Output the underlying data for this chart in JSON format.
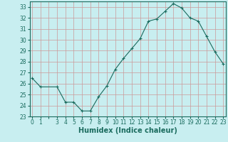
{
  "xlabel": "Humidex (Indice chaleur)",
  "x": [
    0,
    1,
    3,
    4,
    5,
    6,
    7,
    8,
    9,
    10,
    11,
    12,
    13,
    14,
    15,
    16,
    17,
    18,
    19,
    20,
    21,
    22,
    23
  ],
  "y": [
    26.5,
    25.7,
    25.7,
    24.3,
    24.3,
    23.5,
    23.5,
    24.8,
    25.8,
    27.3,
    28.3,
    29.2,
    30.1,
    31.7,
    31.9,
    32.6,
    33.3,
    32.9,
    32.0,
    31.7,
    30.3,
    28.9,
    27.8
  ],
  "line_color": "#1a6b5e",
  "marker": "+",
  "bg_color": "#c8eef0",
  "grid_color": "#cc9999",
  "tick_labels": [
    "0",
    "1",
    "",
    "3",
    "4",
    "5",
    "6",
    "7",
    "8",
    "9",
    "10",
    "11",
    "12",
    "13",
    "14",
    "15",
    "16",
    "17",
    "18",
    "19",
    "20",
    "21",
    "22",
    "23"
  ],
  "ylim": [
    23,
    33.5
  ],
  "xlim": [
    -0.3,
    23.3
  ],
  "yticks": [
    23,
    24,
    25,
    26,
    27,
    28,
    29,
    30,
    31,
    32,
    33
  ],
  "label_fontsize": 7,
  "tick_fontsize": 5.5
}
